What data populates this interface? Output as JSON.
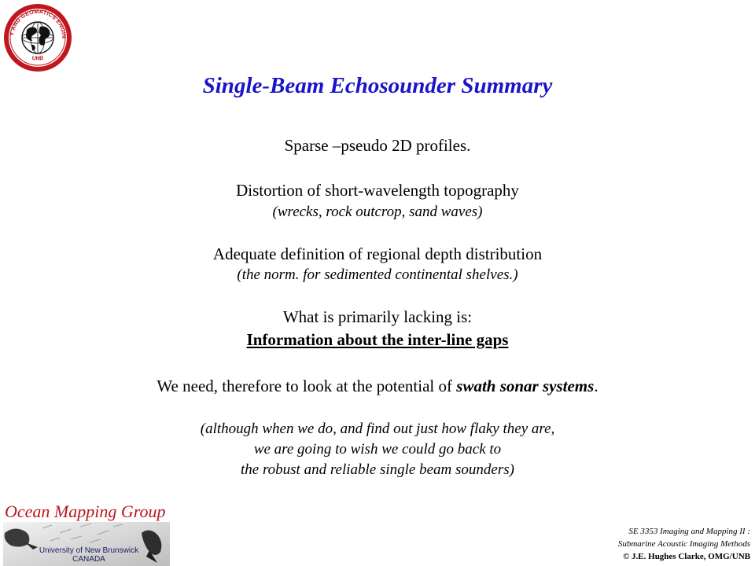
{
  "logo": {
    "arc_top": "GEODESY AND GEOMATICS ENGINEERING",
    "arc_bottom": "UNB",
    "icon": "globe-icon"
  },
  "title": "Single-Beam Echosounder Summary",
  "points": [
    {
      "main": "Sparse –pseudo 2D profiles."
    },
    {
      "main": "Distortion of short-wavelength topography",
      "sub": "(wrecks, rock outcrop, sand waves)"
    },
    {
      "main": "Adequate definition of regional depth distribution",
      "sub": "(the norm. for sedimented continental shelves.)"
    },
    {
      "main": "What is primarily lacking is:",
      "emph": "Information about the inter-line gaps"
    }
  ],
  "conclusion": {
    "before": "We need, therefore to look at the potential of ",
    "emph": "swath sonar systems",
    "after": "."
  },
  "aside": [
    "(although when we do, and find out just how flaky they are,",
    "we are going to wish we could go back to",
    "the robust and reliable single beam sounders)"
  ],
  "footer": {
    "group": "Ocean Mapping Group",
    "university": "University of New Brunswick",
    "country": "CANADA",
    "course_line1": "SE 3353 Imaging and Mapping II :",
    "course_line2": "Submarine Acoustic Imaging Methods",
    "copyright": "© J.E. Hughes Clarke, OMG/UNB"
  },
  "colors": {
    "title": "#1a14c8",
    "group": "#b8161b",
    "logo_ring": "#c0171e"
  }
}
